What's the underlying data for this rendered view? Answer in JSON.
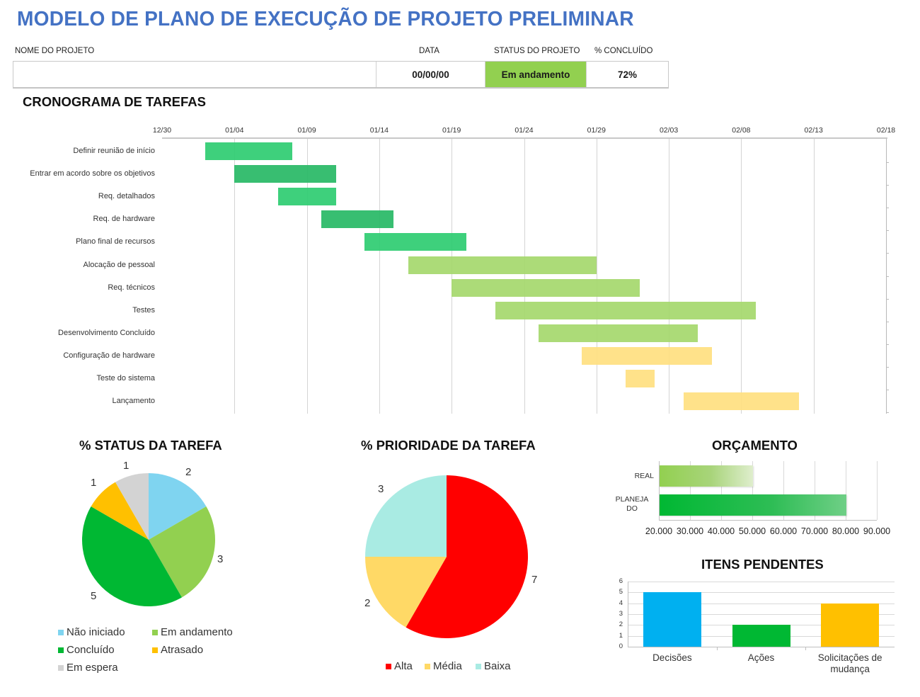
{
  "header": {
    "title": "MODELO DE PLANO DE EXECUÇÃO DE PROJETO PRELIMINAR",
    "labels": {
      "project_name": "NOME DO PROJETO",
      "date": "DATA",
      "status": "STATUS DO PROJETO",
      "percent_complete": "% CONCLUÍDO"
    },
    "values": {
      "project_name": "",
      "date": "00/00/00",
      "status": "Em andamento",
      "percent_complete": "72%"
    },
    "status_color": "#92d050"
  },
  "gantt": {
    "title": "CRONOGRAMA DE TAREFAS"
  },
  "status_pie": {
    "title": "% STATUS DA TAREFA"
  },
  "priority_pie": {
    "title": "% PRIORIDADE DA TAREFA"
  },
  "budget": {
    "title": "ORÇAMENTO"
  },
  "pending": {
    "title": "ITENS PENDENTES"
  },
  "chart_data": [
    {
      "type": "bar",
      "subtype": "gantt",
      "title": "CRONOGRAMA DE TAREFAS",
      "x_ticks": [
        "12/30",
        "01/04",
        "01/09",
        "01/14",
        "01/19",
        "01/24",
        "01/29",
        "02/03",
        "02/08",
        "02/13",
        "02/18"
      ],
      "x_range_days": [
        0,
        50
      ],
      "grid": true,
      "tasks": [
        {
          "name": "Definir reunião de início",
          "start_day": 3,
          "duration": 6,
          "color": "#2ecc71"
        },
        {
          "name": "Entrar em acordo sobre os objetivos",
          "start_day": 5,
          "duration": 7,
          "color": "#27b865"
        },
        {
          "name": "Req. detalhados",
          "start_day": 8,
          "duration": 4,
          "color": "#2ecc71"
        },
        {
          "name": "Req. de hardware",
          "start_day": 11,
          "duration": 5,
          "color": "#27b865"
        },
        {
          "name": "Plano final de recursos",
          "start_day": 14,
          "duration": 7,
          "color": "#2ecc71"
        },
        {
          "name": "Alocação de pessoal",
          "start_day": 17,
          "duration": 13,
          "color": "#a5d86c"
        },
        {
          "name": "Req. técnicos",
          "start_day": 20,
          "duration": 13,
          "color": "#a5d86c"
        },
        {
          "name": "Testes",
          "start_day": 23,
          "duration": 18,
          "color": "#a5d86c"
        },
        {
          "name": "Desenvolvimento Concluído",
          "start_day": 26,
          "duration": 11,
          "color": "#a5d86c"
        },
        {
          "name": "Configuração de hardware",
          "start_day": 29,
          "duration": 9,
          "color": "#ffdf80"
        },
        {
          "name": "Teste do sistema",
          "start_day": 32,
          "duration": 2,
          "color": "#ffdf80"
        },
        {
          "name": "Lançamento",
          "start_day": 36,
          "duration": 8,
          "color": "#ffdf80"
        }
      ]
    },
    {
      "type": "pie",
      "title": "% STATUS DA TAREFA",
      "categories": [
        "Não iniciado",
        "Em andamento",
        "Concluído",
        "Atrasado",
        "Em espera"
      ],
      "values": [
        2,
        3,
        5,
        1,
        1
      ],
      "colors": [
        "#7fd4f0",
        "#92d050",
        "#00b833",
        "#ffc000",
        "#d3d3d3"
      ],
      "legend_position": "bottom"
    },
    {
      "type": "pie",
      "title": "% PRIORIDADE DA TAREFA",
      "categories": [
        "Alta",
        "Média",
        "Baixa"
      ],
      "values": [
        7,
        2,
        3
      ],
      "colors": [
        "#ff0000",
        "#ffd966",
        "#a9ebe3"
      ],
      "legend_position": "bottom"
    },
    {
      "type": "bar",
      "orientation": "horizontal",
      "title": "ORÇAMENTO",
      "categories": [
        "REAL",
        "PLANEJADO"
      ],
      "category_labels": [
        [
          "REAL"
        ],
        [
          "PLANEJA",
          "DO"
        ]
      ],
      "values": [
        50000,
        80000
      ],
      "colors": [
        "#92d050",
        "#00b833"
      ],
      "x_ticks": [
        "20.000",
        "30.000",
        "40.000",
        "50.000",
        "60.000",
        "70.000",
        "80.000",
        "90.000"
      ],
      "xlim": [
        20000,
        90000
      ],
      "grid": true
    },
    {
      "type": "bar",
      "title": "ITENS PENDENTES",
      "categories": [
        "Decisões",
        "Ações",
        "Solicitações de mudança"
      ],
      "category_labels": [
        [
          "Decisões"
        ],
        [
          "Ações"
        ],
        [
          "Solicitações de",
          "mudança"
        ]
      ],
      "values": [
        5,
        2,
        4
      ],
      "colors": [
        "#00b0f0",
        "#00b833",
        "#ffc000"
      ],
      "y_ticks": [
        "0",
        "1",
        "2",
        "3",
        "4",
        "5",
        "6"
      ],
      "ylim": [
        0,
        6
      ],
      "grid": true
    }
  ]
}
